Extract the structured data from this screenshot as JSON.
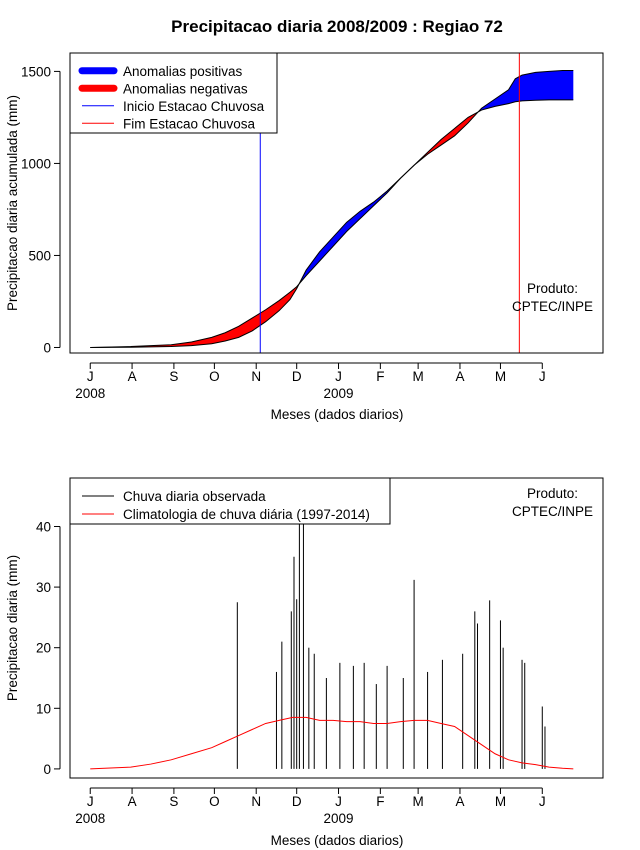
{
  "chart_data": [
    {
      "type": "area",
      "title": "Precipitacao diaria 2008/2009 : Regiao 72",
      "xlabel": "Meses (dados diarios)",
      "ylabel": "Precipitacao diaria acumulada (mm)",
      "x_ticks": [
        "J",
        "A",
        "S",
        "O",
        "N",
        "D",
        "J",
        "F",
        "M",
        "A",
        "M",
        "J"
      ],
      "x_tick_days": [
        0,
        31,
        62,
        92,
        123,
        153,
        184,
        215,
        243,
        274,
        304,
        335
      ],
      "year_labels": [
        {
          "label": "2008",
          "day": 0
        },
        {
          "label": "2009",
          "day": 184
        }
      ],
      "xlim": [
        -15,
        380
      ],
      "ylim": [
        -30,
        1600
      ],
      "y_ticks": [
        0,
        500,
        1000,
        1500
      ],
      "legend": {
        "position": "top-left",
        "items": [
          {
            "label": "Anomalias positivas",
            "color": "#0000ff",
            "kind": "thick"
          },
          {
            "label": "Anomalias negativas",
            "color": "#ff0000",
            "kind": "thick"
          },
          {
            "label": "Inicio Estacao Chuvosa",
            "color": "#0000ff",
            "kind": "thin"
          },
          {
            "label": "Fim Estacao Chuvosa",
            "color": "#ff0000",
            "kind": "thin"
          }
        ]
      },
      "annotation": [
        "Produto:",
        "CPTEC/INPE"
      ],
      "rainy_season_start_day": 126,
      "rainy_season_end_day": 318,
      "series": [
        {
          "name": "Acumulado observado",
          "points": [
            [
              0,
              0
            ],
            [
              30,
              1
            ],
            [
              60,
              5
            ],
            [
              75,
              10
            ],
            [
              90,
              20
            ],
            [
              100,
              35
            ],
            [
              110,
              55
            ],
            [
              120,
              90
            ],
            [
              130,
              140
            ],
            [
              140,
              200
            ],
            [
              148,
              260
            ],
            [
              153,
              320
            ],
            [
              160,
              420
            ],
            [
              170,
              520
            ],
            [
              180,
              600
            ],
            [
              190,
              680
            ],
            [
              200,
              740
            ],
            [
              210,
              790
            ],
            [
              220,
              850
            ],
            [
              230,
              920
            ],
            [
              240,
              990
            ],
            [
              250,
              1050
            ],
            [
              260,
              1100
            ],
            [
              270,
              1150
            ],
            [
              280,
              1220
            ],
            [
              290,
              1300
            ],
            [
              300,
              1350
            ],
            [
              310,
              1400
            ],
            [
              315,
              1460
            ],
            [
              320,
              1480
            ],
            [
              330,
              1495
            ],
            [
              340,
              1500
            ],
            [
              350,
              1505
            ],
            [
              358,
              1505
            ]
          ]
        },
        {
          "name": "Acumulado climatologico",
          "points": [
            [
              0,
              0
            ],
            [
              30,
              5
            ],
            [
              60,
              15
            ],
            [
              75,
              30
            ],
            [
              90,
              55
            ],
            [
              100,
              80
            ],
            [
              110,
              115
            ],
            [
              120,
              160
            ],
            [
              130,
              205
            ],
            [
              140,
              255
            ],
            [
              148,
              300
            ],
            [
              153,
              330
            ],
            [
              160,
              390
            ],
            [
              170,
              470
            ],
            [
              180,
              550
            ],
            [
              190,
              630
            ],
            [
              200,
              700
            ],
            [
              210,
              770
            ],
            [
              220,
              840
            ],
            [
              230,
              920
            ],
            [
              240,
              990
            ],
            [
              250,
              1060
            ],
            [
              260,
              1130
            ],
            [
              270,
              1190
            ],
            [
              280,
              1250
            ],
            [
              290,
              1290
            ],
            [
              300,
              1310
            ],
            [
              310,
              1325
            ],
            [
              315,
              1335
            ],
            [
              320,
              1340
            ],
            [
              330,
              1343
            ],
            [
              340,
              1345
            ],
            [
              350,
              1345
            ],
            [
              358,
              1345
            ]
          ]
        }
      ]
    },
    {
      "type": "line",
      "xlabel": "Meses (dados diarios)",
      "ylabel": "Precipitacao diaria (mm)",
      "x_ticks": [
        "J",
        "A",
        "S",
        "O",
        "N",
        "D",
        "J",
        "F",
        "M",
        "A",
        "M",
        "J"
      ],
      "x_tick_days": [
        0,
        31,
        62,
        92,
        123,
        153,
        184,
        215,
        243,
        274,
        304,
        335
      ],
      "year_labels": [
        {
          "label": "2008",
          "day": 0
        },
        {
          "label": "2009",
          "day": 184
        }
      ],
      "xlim": [
        -15,
        380
      ],
      "ylim": [
        -1.5,
        48
      ],
      "y_ticks": [
        0,
        10,
        20,
        30,
        40
      ],
      "legend": {
        "position": "top-left",
        "items": [
          {
            "label": "Chuva diaria observada",
            "color": "#000000",
            "kind": "thin"
          },
          {
            "label": "Climatologia de chuva diária (1997-2014)",
            "color": "#ff0000",
            "kind": "thin"
          }
        ]
      },
      "annotation": [
        "Produto:",
        "CPTEC/INPE"
      ],
      "observed_spikes": [
        {
          "day": 109,
          "value": 27.5
        },
        {
          "day": 138,
          "value": 16
        },
        {
          "day": 142,
          "value": 21
        },
        {
          "day": 149,
          "value": 26
        },
        {
          "day": 151,
          "value": 35
        },
        {
          "day": 153,
          "value": 28
        },
        {
          "day": 155,
          "value": 45
        },
        {
          "day": 158,
          "value": 44
        },
        {
          "day": 162,
          "value": 20
        },
        {
          "day": 166,
          "value": 19
        },
        {
          "day": 175,
          "value": 15
        },
        {
          "day": 185,
          "value": 17.5
        },
        {
          "day": 195,
          "value": 17
        },
        {
          "day": 203,
          "value": 17.5
        },
        {
          "day": 212,
          "value": 14
        },
        {
          "day": 220,
          "value": 17
        },
        {
          "day": 232,
          "value": 15
        },
        {
          "day": 240,
          "value": 31.2
        },
        {
          "day": 250,
          "value": 16
        },
        {
          "day": 261,
          "value": 18
        },
        {
          "day": 276,
          "value": 19
        },
        {
          "day": 285,
          "value": 26
        },
        {
          "day": 287,
          "value": 24
        },
        {
          "day": 296,
          "value": 27.8
        },
        {
          "day": 304,
          "value": 24.5
        },
        {
          "day": 306,
          "value": 20
        },
        {
          "day": 320,
          "value": 18
        },
        {
          "day": 322,
          "value": 17.5
        },
        {
          "day": 335,
          "value": 10.3
        },
        {
          "day": 337,
          "value": 7
        }
      ],
      "climatology_points": [
        [
          0,
          0
        ],
        [
          30,
          0.3
        ],
        [
          45,
          0.8
        ],
        [
          60,
          1.5
        ],
        [
          75,
          2.5
        ],
        [
          90,
          3.5
        ],
        [
          100,
          4.5
        ],
        [
          110,
          5.5
        ],
        [
          120,
          6.5
        ],
        [
          130,
          7.5
        ],
        [
          140,
          8
        ],
        [
          150,
          8.5
        ],
        [
          160,
          8.5
        ],
        [
          170,
          8
        ],
        [
          180,
          8
        ],
        [
          190,
          7.8
        ],
        [
          200,
          7.8
        ],
        [
          210,
          7.5
        ],
        [
          220,
          7.5
        ],
        [
          230,
          7.8
        ],
        [
          240,
          8
        ],
        [
          250,
          8
        ],
        [
          260,
          7.5
        ],
        [
          270,
          7
        ],
        [
          280,
          5.5
        ],
        [
          290,
          4
        ],
        [
          300,
          2.5
        ],
        [
          310,
          1.5
        ],
        [
          320,
          1
        ],
        [
          330,
          0.7
        ],
        [
          340,
          0.3
        ],
        [
          350,
          0.1
        ],
        [
          358,
          0
        ]
      ]
    }
  ]
}
